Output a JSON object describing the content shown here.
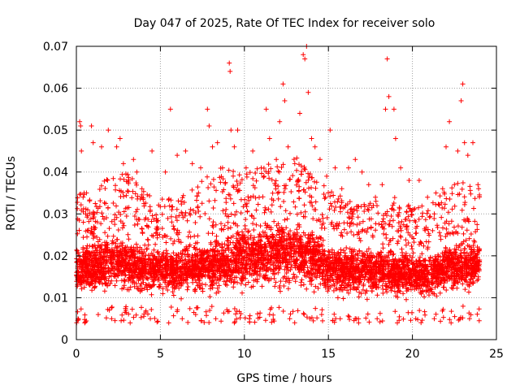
{
  "chart_data": {
    "type": "scatter",
    "title": "Day 047 of 2025, Rate Of TEC Index for receiver solo",
    "xlabel": "GPS time / hours",
    "ylabel": "ROTI / TECUs",
    "xlim": [
      0,
      25
    ],
    "ylim": [
      0,
      0.07
    ],
    "xticks": [
      0,
      5,
      10,
      15,
      20,
      25
    ],
    "yticks": [
      0,
      0.01,
      0.02,
      0.03,
      0.04,
      0.05,
      0.06,
      0.07
    ],
    "xtick_labels": [
      "0",
      "5",
      "10",
      "15",
      "20",
      "25"
    ],
    "ytick_labels": [
      "0",
      "0.01",
      "0.02",
      "0.03",
      "0.04",
      "0.05",
      "0.06",
      "0.07"
    ],
    "grid": true,
    "marker": "+",
    "marker_color": "#ff0000",
    "data_range_x": [
      0,
      24
    ],
    "density_note": "dense cloud of ROTI samples, core ~0.008-0.025 TECU/s across the whole day",
    "series": [
      {
        "name": "ROTI",
        "points": [
          [
            0.1,
            0.005
          ],
          [
            0.2,
            0.052
          ],
          [
            0.25,
            0.051
          ],
          [
            0.3,
            0.045
          ],
          [
            0.4,
            0.034
          ],
          [
            0.6,
            0.035
          ],
          [
            0.9,
            0.051
          ],
          [
            1.0,
            0.047
          ],
          [
            1.5,
            0.046
          ],
          [
            1.9,
            0.05
          ],
          [
            2.4,
            0.046
          ],
          [
            2.6,
            0.048
          ],
          [
            2.8,
            0.042
          ],
          [
            3.4,
            0.043
          ],
          [
            3.6,
            0.04
          ],
          [
            3.9,
            0.036
          ],
          [
            4.5,
            0.045
          ],
          [
            5.3,
            0.04
          ],
          [
            5.6,
            0.055
          ],
          [
            6.0,
            0.044
          ],
          [
            6.5,
            0.045
          ],
          [
            6.9,
            0.042
          ],
          [
            7.4,
            0.041
          ],
          [
            7.8,
            0.055
          ],
          [
            7.9,
            0.051
          ],
          [
            8.1,
            0.046
          ],
          [
            8.4,
            0.047
          ],
          [
            8.7,
            0.041
          ],
          [
            9.1,
            0.066
          ],
          [
            9.15,
            0.064
          ],
          [
            9.2,
            0.05
          ],
          [
            9.4,
            0.046
          ],
          [
            9.6,
            0.05
          ],
          [
            10.1,
            0.041
          ],
          [
            10.5,
            0.045
          ],
          [
            11.0,
            0.041
          ],
          [
            11.3,
            0.055
          ],
          [
            11.5,
            0.048
          ],
          [
            11.9,
            0.043
          ],
          [
            12.1,
            0.052
          ],
          [
            12.3,
            0.061
          ],
          [
            12.4,
            0.057
          ],
          [
            12.6,
            0.046
          ],
          [
            13.0,
            0.042
          ],
          [
            13.3,
            0.054
          ],
          [
            13.5,
            0.068
          ],
          [
            13.6,
            0.067
          ],
          [
            13.7,
            0.07
          ],
          [
            13.8,
            0.059
          ],
          [
            14.0,
            0.048
          ],
          [
            14.2,
            0.046
          ],
          [
            14.5,
            0.043
          ],
          [
            14.9,
            0.039
          ],
          [
            15.1,
            0.05
          ],
          [
            15.4,
            0.041
          ],
          [
            15.8,
            0.036
          ],
          [
            16.2,
            0.041
          ],
          [
            16.6,
            0.043
          ],
          [
            17.0,
            0.04
          ],
          [
            17.4,
            0.037
          ],
          [
            17.8,
            0.034
          ],
          [
            18.2,
            0.037
          ],
          [
            18.4,
            0.055
          ],
          [
            18.5,
            0.067
          ],
          [
            18.6,
            0.058
          ],
          [
            18.9,
            0.055
          ],
          [
            19.0,
            0.048
          ],
          [
            19.3,
            0.041
          ],
          [
            19.8,
            0.038
          ],
          [
            20.4,
            0.038
          ],
          [
            20.9,
            0.034
          ],
          [
            21.4,
            0.035
          ],
          [
            21.8,
            0.036
          ],
          [
            22.0,
            0.046
          ],
          [
            22.2,
            0.052
          ],
          [
            22.5,
            0.037
          ],
          [
            22.7,
            0.045
          ],
          [
            22.9,
            0.057
          ],
          [
            23.0,
            0.061
          ],
          [
            23.1,
            0.047
          ],
          [
            23.3,
            0.044
          ],
          [
            23.6,
            0.047
          ],
          [
            23.9,
            0.037
          ],
          [
            0.5,
            0.004
          ],
          [
            1.3,
            0.006
          ],
          [
            2.1,
            0.005
          ],
          [
            3.2,
            0.004
          ],
          [
            4.4,
            0.005
          ],
          [
            5.5,
            0.004
          ],
          [
            6.3,
            0.005
          ],
          [
            7.1,
            0.006
          ],
          [
            8.3,
            0.005
          ],
          [
            9.4,
            0.004
          ],
          [
            10.3,
            0.005
          ],
          [
            11.5,
            0.006
          ],
          [
            12.7,
            0.005
          ],
          [
            13.9,
            0.005
          ],
          [
            14.6,
            0.006
          ],
          [
            15.7,
            0.005
          ],
          [
            16.8,
            0.004
          ],
          [
            17.9,
            0.005
          ],
          [
            19.1,
            0.004
          ],
          [
            20.2,
            0.005
          ],
          [
            21.3,
            0.005
          ],
          [
            22.3,
            0.004
          ],
          [
            23.4,
            0.005
          ]
        ]
      }
    ],
    "density_profile": {
      "hours": [
        0,
        1,
        2,
        3,
        4,
        5,
        6,
        7,
        8,
        9,
        10,
        11,
        12,
        13,
        14,
        15,
        16,
        17,
        18,
        19,
        20,
        21,
        22,
        23,
        24
      ],
      "core_low": [
        0.008,
        0.008,
        0.008,
        0.008,
        0.008,
        0.008,
        0.008,
        0.008,
        0.008,
        0.008,
        0.008,
        0.008,
        0.008,
        0.008,
        0.008,
        0.007,
        0.007,
        0.007,
        0.007,
        0.007,
        0.007,
        0.007,
        0.008,
        0.008,
        0.008
      ],
      "core_high": [
        0.024,
        0.024,
        0.026,
        0.026,
        0.024,
        0.023,
        0.023,
        0.024,
        0.025,
        0.026,
        0.028,
        0.03,
        0.03,
        0.03,
        0.028,
        0.025,
        0.024,
        0.023,
        0.024,
        0.023,
        0.022,
        0.022,
        0.024,
        0.025,
        0.026
      ],
      "spread_max": [
        0.036,
        0.034,
        0.04,
        0.04,
        0.036,
        0.034,
        0.034,
        0.036,
        0.04,
        0.042,
        0.04,
        0.042,
        0.044,
        0.044,
        0.04,
        0.036,
        0.034,
        0.032,
        0.034,
        0.034,
        0.032,
        0.032,
        0.036,
        0.038,
        0.036
      ]
    }
  }
}
